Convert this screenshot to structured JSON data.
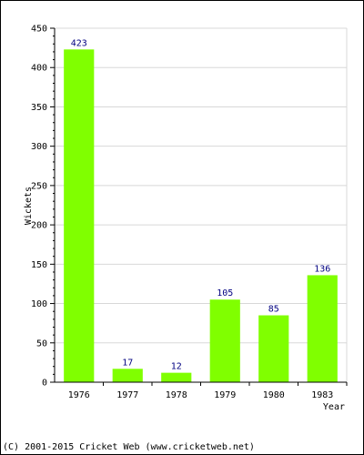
{
  "chart_data": {
    "type": "bar",
    "categories": [
      "1976",
      "1977",
      "1978",
      "1979",
      "1980",
      "1983"
    ],
    "values": [
      423,
      17,
      12,
      105,
      85,
      136
    ],
    "ylabel": "Wickets",
    "xlabel": "Year",
    "ylim": [
      0,
      450
    ],
    "yticks": [
      0,
      50,
      100,
      150,
      200,
      250,
      300,
      350,
      400,
      450
    ],
    "grid": true,
    "bar_color": "#80ff00",
    "label_color": "#000080"
  },
  "footer": {
    "copyright": "(C) 2001-2015 Cricket Web (www.cricketweb.net)"
  }
}
